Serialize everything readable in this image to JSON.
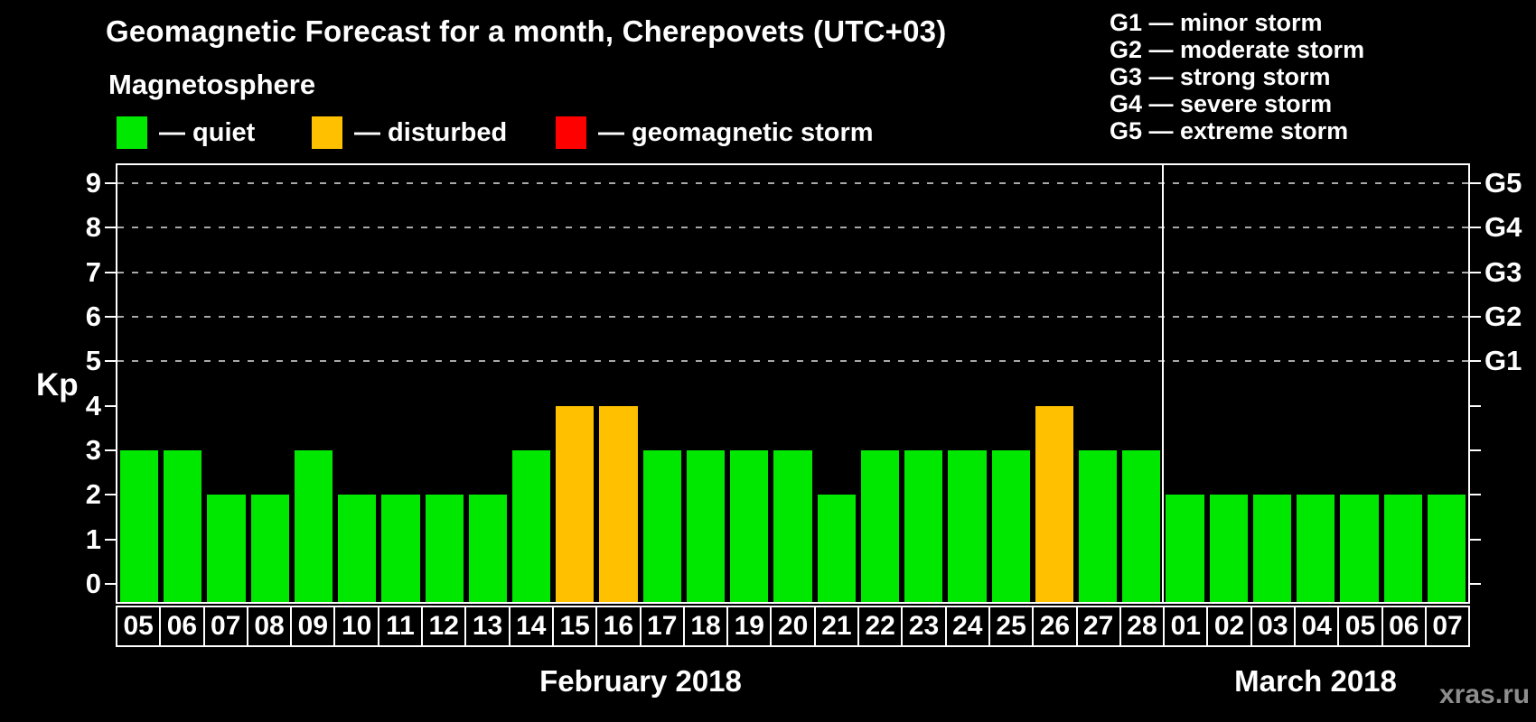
{
  "header": {
    "title": "Geomagnetic Forecast for a month, Cherepovets (UTC+03)",
    "subtitle": "Magnetosphere"
  },
  "legend": {
    "items": [
      {
        "name": "quiet",
        "label": "— quiet",
        "color": "#00e800"
      },
      {
        "name": "disturbed",
        "label": "— disturbed",
        "color": "#ffc000"
      },
      {
        "name": "storm",
        "label": "— geomagnetic storm",
        "color": "#ff0000"
      }
    ]
  },
  "g_legend": {
    "items": [
      "G1 — minor storm",
      "G2 — moderate storm",
      "G3 — strong storm",
      "G4 — severe storm",
      "G5 — extreme storm"
    ]
  },
  "axes": {
    "y_label": "Kp",
    "y_ticks": [
      "0",
      "1",
      "2",
      "3",
      "4",
      "5",
      "6",
      "7",
      "8",
      "9"
    ],
    "right_labels": [
      {
        "text": "G1",
        "kp": 5
      },
      {
        "text": "G2",
        "kp": 6
      },
      {
        "text": "G3",
        "kp": 7
      },
      {
        "text": "G4",
        "kp": 8
      },
      {
        "text": "G5",
        "kp": 9
      }
    ]
  },
  "watermark": "xras.ru",
  "chart_data": {
    "type": "bar",
    "title": "Geomagnetic Forecast for a month, Cherepovets (UTC+03)",
    "ylabel": "Kp",
    "ylim": [
      -0.4,
      9.4
    ],
    "grid": "dashed horizontal at Kp 5-9",
    "gridlines_kp": [
      5,
      6,
      7,
      8,
      9
    ],
    "colors": {
      "quiet": "#00e800",
      "disturbed": "#ffc000",
      "storm": "#ff0000"
    },
    "groups": [
      {
        "label": "February 2018",
        "categories": [
          "05",
          "06",
          "07",
          "08",
          "09",
          "10",
          "11",
          "12",
          "13",
          "14",
          "15",
          "16",
          "17",
          "18",
          "19",
          "20",
          "21",
          "22",
          "23",
          "24",
          "25",
          "26",
          "27",
          "28"
        ],
        "values": [
          3,
          3,
          2,
          2,
          3,
          2,
          2,
          2,
          2,
          3,
          4,
          4,
          3,
          3,
          3,
          3,
          2,
          3,
          3,
          3,
          3,
          4,
          3,
          3
        ],
        "status": [
          "quiet",
          "quiet",
          "quiet",
          "quiet",
          "quiet",
          "quiet",
          "quiet",
          "quiet",
          "quiet",
          "quiet",
          "disturbed",
          "disturbed",
          "quiet",
          "quiet",
          "quiet",
          "quiet",
          "quiet",
          "quiet",
          "quiet",
          "quiet",
          "quiet",
          "disturbed",
          "quiet",
          "quiet"
        ]
      },
      {
        "label": "March 2018",
        "categories": [
          "01",
          "02",
          "03",
          "04",
          "05",
          "06",
          "07"
        ],
        "values": [
          2,
          2,
          2,
          2,
          2,
          2,
          2
        ],
        "status": [
          "quiet",
          "quiet",
          "quiet",
          "quiet",
          "quiet",
          "quiet",
          "quiet"
        ]
      }
    ]
  }
}
